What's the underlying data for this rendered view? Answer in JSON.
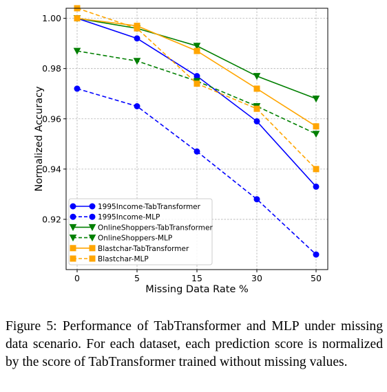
{
  "chart_data": {
    "type": "line",
    "x": [
      0,
      5,
      15,
      30,
      50
    ],
    "xlabel": "Missing Data Rate %",
    "ylabel": "Normalized Accuracy",
    "ylim": [
      0.9,
      1.004
    ],
    "yticks": [
      "0.92",
      "0.94",
      "0.96",
      "0.98",
      "1.00"
    ],
    "ytick_values": [
      0.92,
      0.94,
      0.96,
      0.98,
      1.0
    ],
    "xtick_labels": [
      "0",
      "5",
      "15",
      "30",
      "50"
    ],
    "grid": true,
    "legend_position": "lower-left",
    "series": [
      {
        "name": "1995Income-TabTransformer",
        "values": [
          1.0,
          0.992,
          0.977,
          0.959,
          0.933
        ],
        "color": "#0000ff",
        "dash": "solid",
        "marker": "circle"
      },
      {
        "name": "1995Income-MLP",
        "values": [
          0.972,
          0.965,
          0.947,
          0.928,
          0.906
        ],
        "color": "#0000ff",
        "dash": "dashed",
        "marker": "circle"
      },
      {
        "name": "OnlineShoppers-TabTransformer",
        "values": [
          1.0,
          0.996,
          0.989,
          0.977,
          0.968
        ],
        "color": "#007f00",
        "dash": "solid",
        "marker": "triangle-down"
      },
      {
        "name": "OnlineShoppers-MLP",
        "values": [
          0.987,
          0.983,
          0.975,
          0.965,
          0.954
        ],
        "color": "#007f00",
        "dash": "dashed",
        "marker": "triangle-down"
      },
      {
        "name": "Blastchar-TabTransformer",
        "values": [
          1.0,
          0.997,
          0.987,
          0.972,
          0.957
        ],
        "color": "#ffa500",
        "dash": "solid",
        "marker": "square"
      },
      {
        "name": "Blastchar-MLP",
        "values": [
          1.004,
          0.996,
          0.974,
          0.964,
          0.94
        ],
        "color": "#ffa500",
        "dash": "dashed",
        "marker": "square"
      }
    ]
  },
  "caption": "Figure 5: Performance of TabTransformer and MLP under missing data scenario. For each dataset, each prediction score is normalized by the score of TabTransformer trained without missing values."
}
